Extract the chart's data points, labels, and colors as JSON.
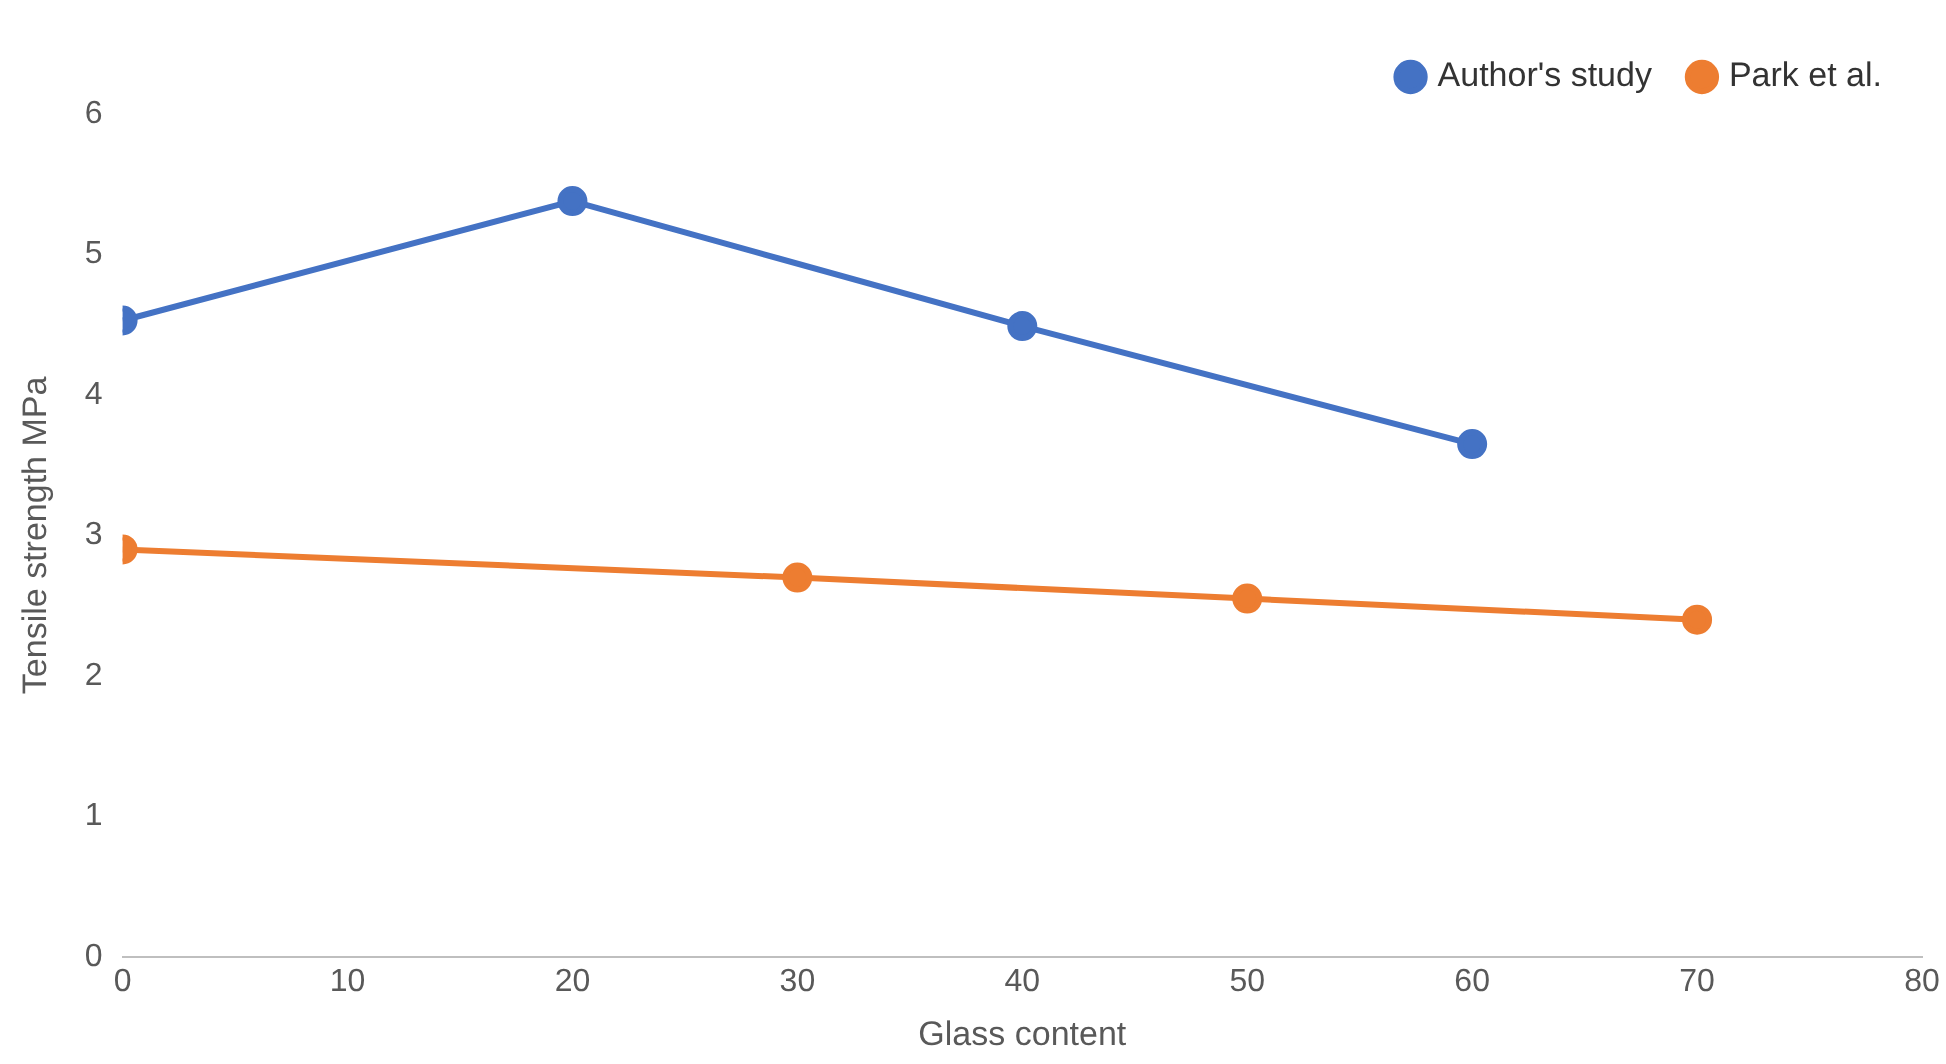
{
  "chart_data": {
    "type": "line",
    "xlabel": "Glass content",
    "ylabel": "Tensile strength MPa",
    "xlim": [
      0,
      80
    ],
    "xticks": [
      0,
      10,
      20,
      30,
      40,
      50,
      60,
      70,
      80
    ],
    "ylim": [
      0,
      6
    ],
    "yticks": [
      0,
      1,
      2,
      3,
      4,
      5,
      6
    ],
    "grid": false,
    "legend": "top right",
    "marker": "circle",
    "line_style": "solid",
    "series": [
      {
        "name": "Author's study",
        "color": "#4472c4",
        "x": [
          0,
          20,
          40,
          60
        ],
        "values": [
          4.53,
          5.38,
          4.49,
          3.65
        ]
      },
      {
        "name": "Park et al.",
        "color": "#ed7d31",
        "x": [
          0,
          30,
          50,
          70
        ],
        "values": [
          2.9,
          2.7,
          2.55,
          2.4
        ]
      }
    ]
  }
}
